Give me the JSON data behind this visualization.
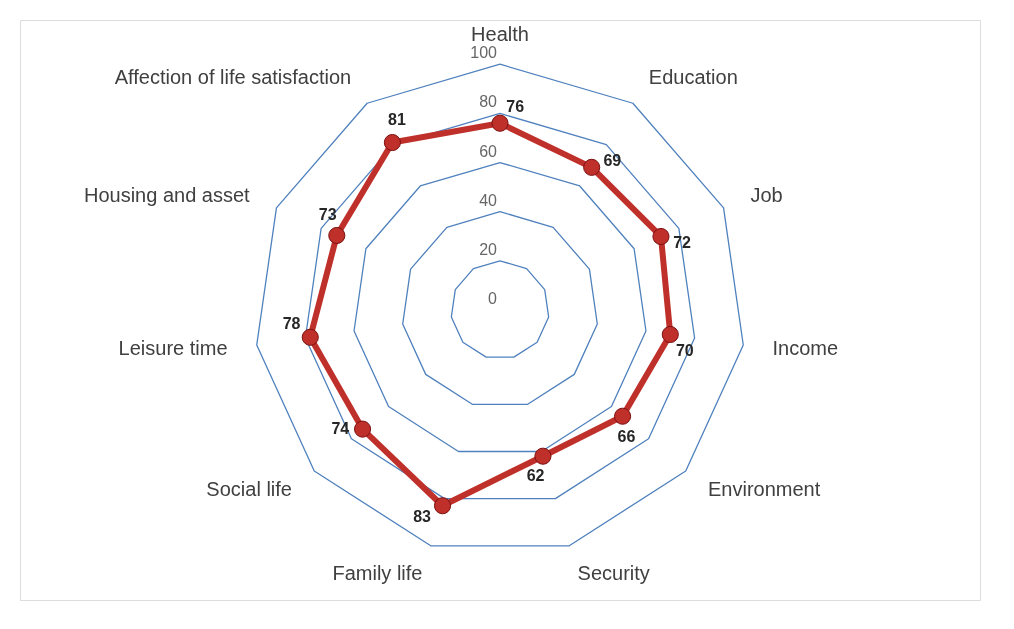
{
  "chart_data": {
    "type": "radar",
    "categories": [
      "Health",
      "Education",
      "Job",
      "Income",
      "Environment",
      "Security",
      "Family life",
      "Social life",
      "Leisure time",
      "Housing and asset",
      "Affection of life satisfaction"
    ],
    "series": [
      {
        "color": "#c0302b",
        "values": [
          76,
          69,
          72,
          70,
          66,
          62,
          83,
          74,
          78,
          73,
          81
        ]
      }
    ],
    "ylim": [
      0,
      100
    ],
    "yticks": [
      0,
      20,
      40,
      60,
      80,
      100
    ],
    "grid": true,
    "legend": false,
    "marker": "circle",
    "line_style": "solid",
    "data_labels": true
  }
}
